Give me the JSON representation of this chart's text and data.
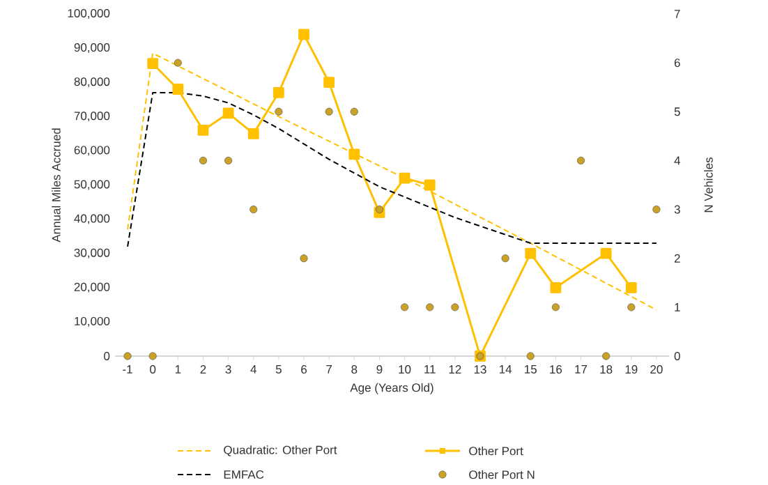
{
  "chart_data": {
    "type": "line",
    "xlabel": "Age (Years Old)",
    "ylabel": "Annual Miles Accrued",
    "y2label": "N Vehicles",
    "x": [
      -1,
      0,
      1,
      2,
      3,
      4,
      5,
      6,
      7,
      8,
      9,
      10,
      11,
      12,
      13,
      14,
      15,
      16,
      17,
      18,
      19,
      20
    ],
    "xlim": [
      -1.5,
      20.5
    ],
    "xticks": [
      -1,
      0,
      1,
      2,
      3,
      4,
      5,
      6,
      7,
      8,
      9,
      10,
      11,
      12,
      13,
      14,
      15,
      16,
      17,
      18,
      19,
      20
    ],
    "ylim": [
      0,
      100000
    ],
    "yticks": [
      {
        "value": 0,
        "label": "0"
      },
      {
        "value": 10000,
        "label": "10,000"
      },
      {
        "value": 20000,
        "label": "20,000"
      },
      {
        "value": 30000,
        "label": "30,000"
      },
      {
        "value": 40000,
        "label": "40,000"
      },
      {
        "value": 50000,
        "label": "50,000"
      },
      {
        "value": 60000,
        "label": "60,000"
      },
      {
        "value": 70000,
        "label": "70,000"
      },
      {
        "value": 80000,
        "label": "80,000"
      },
      {
        "value": 90000,
        "label": "90,000"
      },
      {
        "value": 100000,
        "label": "100,000"
      }
    ],
    "y2lim": [
      0,
      7
    ],
    "y2ticks": [
      0,
      1,
      2,
      3,
      4,
      5,
      6,
      7
    ],
    "legend": "bottom",
    "grid": false,
    "series": [
      {
        "name": "Quadratic: Other Port",
        "line_style": "dashed",
        "marker": "none",
        "color": "#ffc000",
        "x": [
          -1,
          0,
          5,
          10,
          15,
          20
        ],
        "values": [
          37000,
          88500,
          70000,
          52000,
          33000,
          13500
        ]
      },
      {
        "name": "Other Port",
        "line_style": "solid",
        "marker": "square",
        "color": "#ffc000",
        "x": [
          0,
          1,
          2,
          3,
          4,
          5,
          6,
          7,
          8,
          9,
          10,
          11,
          13,
          15,
          16,
          18,
          19
        ],
        "values": [
          85500,
          78000,
          66000,
          71000,
          65000,
          77000,
          94000,
          80000,
          59000,
          42000,
          52000,
          50000,
          0,
          30000,
          20000,
          30000,
          20000
        ]
      },
      {
        "name": "EMFAC",
        "line_style": "dashed",
        "marker": "none",
        "color": "#000000",
        "values": [
          32000,
          77000,
          77000,
          76000,
          74000,
          70500,
          66500,
          62000,
          57500,
          53500,
          49500,
          46500,
          43500,
          40500,
          38000,
          35500,
          33000,
          33000,
          33000,
          33000,
          33000,
          33000
        ]
      },
      {
        "name": "Other Port N",
        "type": "scatter",
        "axis": "y2",
        "marker": "circle",
        "color": "#c9a227",
        "values": [
          0,
          0,
          6,
          4,
          4,
          3,
          5,
          2,
          5,
          5,
          3,
          1,
          1,
          1,
          0,
          2,
          0,
          1,
          4,
          0,
          1,
          3
        ]
      }
    ]
  }
}
